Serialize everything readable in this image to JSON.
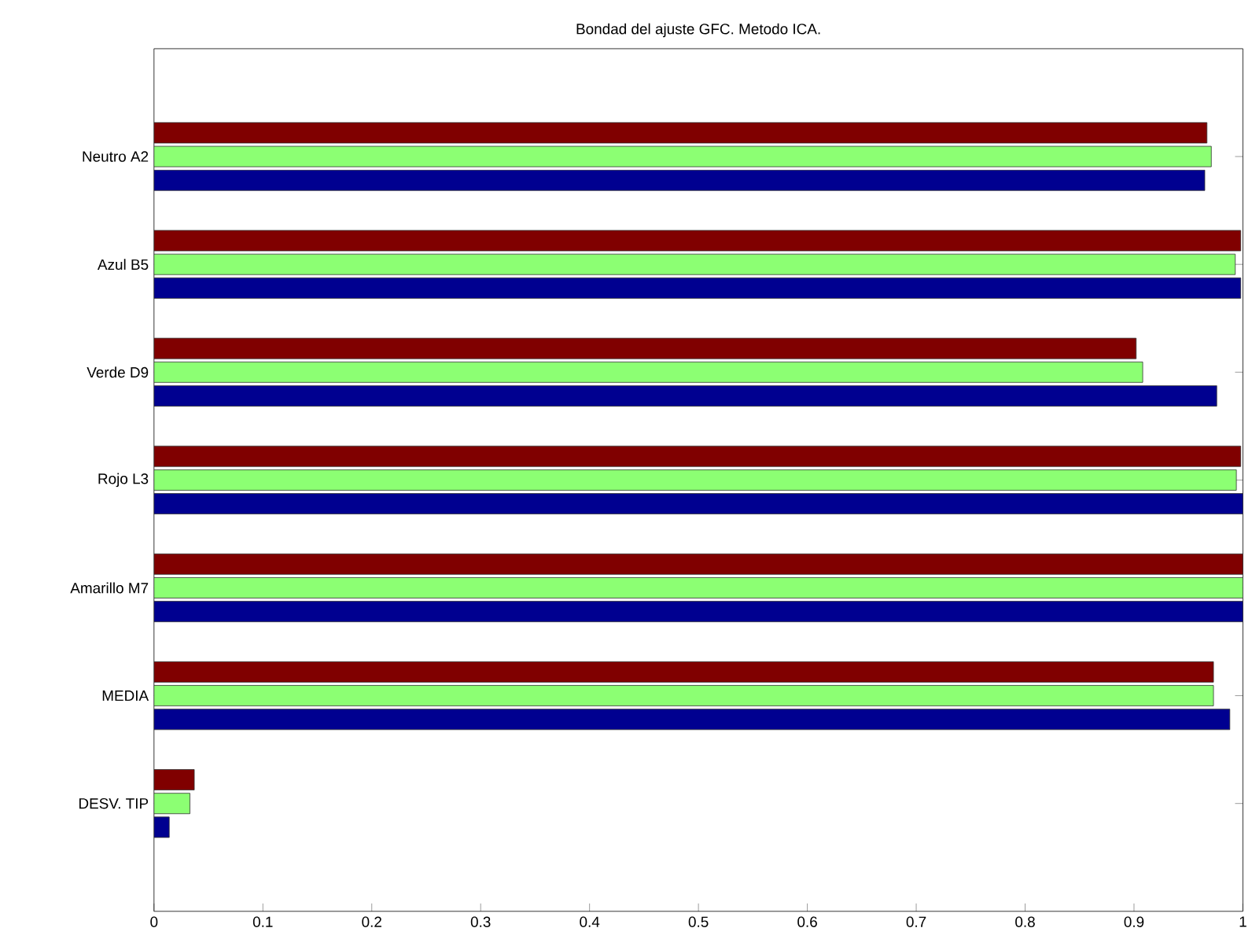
{
  "chart_data": {
    "type": "bar",
    "orientation": "horizontal",
    "title": "Bondad del ajuste GFC. Metodo ICA.",
    "categories": [
      "Neutro A2",
      "Azul B5",
      "Verde D9",
      "Rojo L3",
      "Amarillo M7",
      "MEDIA",
      "DESV. TIP"
    ],
    "series": [
      {
        "color": "#800000",
        "values": [
          0.967,
          0.998,
          0.902,
          0.998,
          1.0,
          0.973,
          0.037
        ]
      },
      {
        "color": "#8cff73",
        "values": [
          0.971,
          0.993,
          0.908,
          0.994,
          1.0,
          0.973,
          0.033
        ]
      },
      {
        "color": "#000090",
        "values": [
          0.965,
          0.998,
          0.976,
          1.0,
          1.0,
          0.988,
          0.014
        ]
      }
    ],
    "xlim": [
      0,
      1
    ],
    "xticks": [
      0,
      0.1,
      0.2,
      0.3,
      0.4,
      0.5,
      0.6,
      0.7,
      0.8,
      0.9,
      1
    ],
    "grid": false
  }
}
